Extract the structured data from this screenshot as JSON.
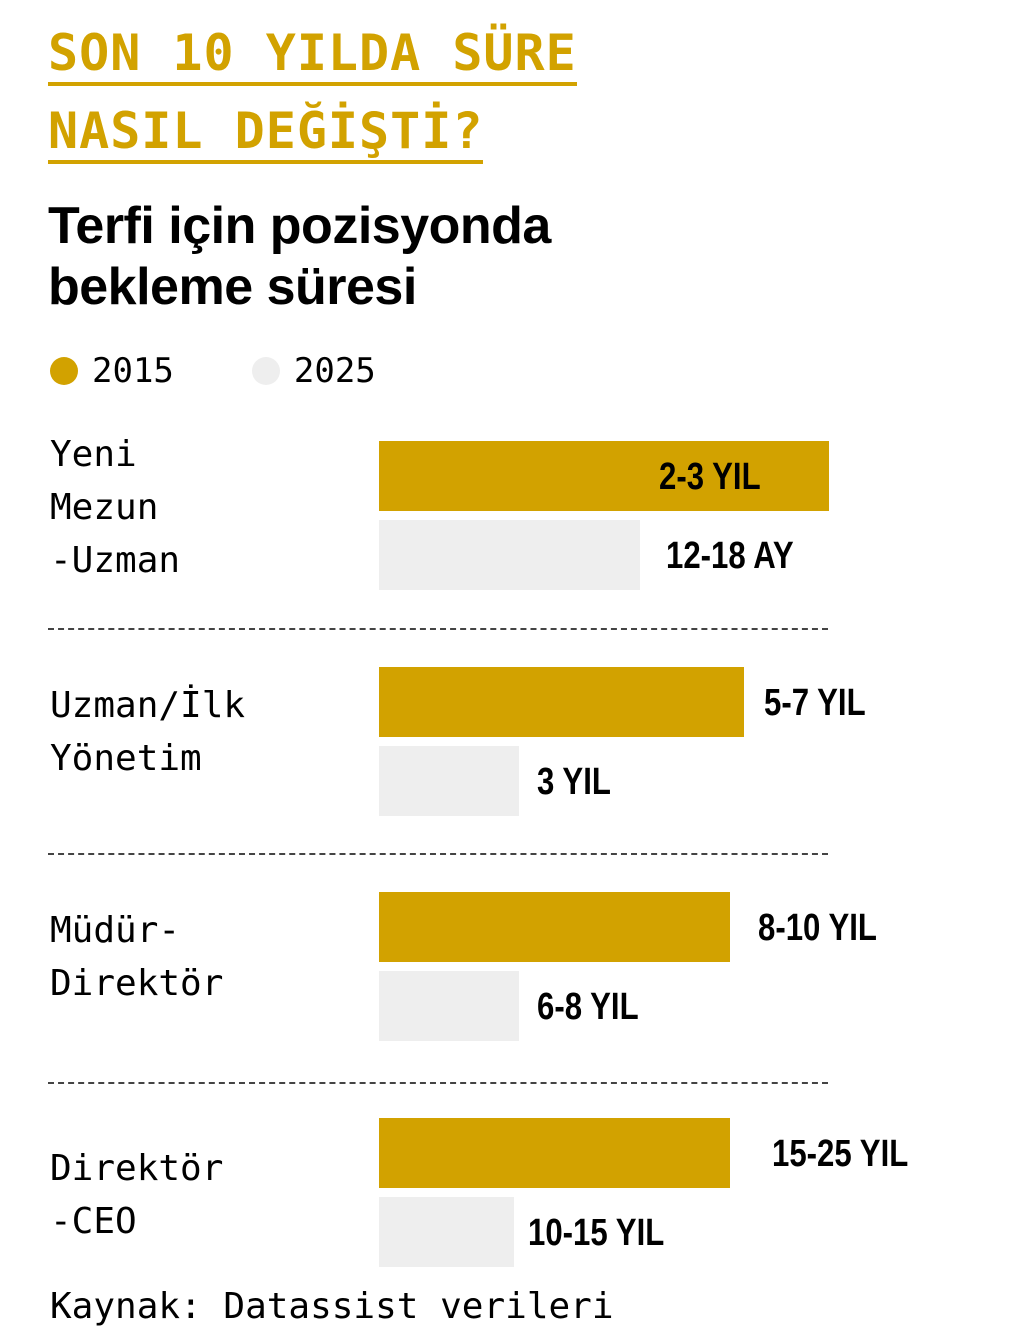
{
  "header": {
    "headline_line1": "SON 10 YILDA SÜRE",
    "headline_line2": "NASIL DEĞİŞTİ?",
    "subtitle": "Terfi için pozisyonda bekleme süresi"
  },
  "colors": {
    "accent": "#d2a200",
    "series_2015": "#d2a200",
    "series_2025": "#eeeeee",
    "text": "#000000"
  },
  "chart_data": {
    "type": "bar",
    "orientation": "horizontal",
    "categories": [
      "Yeni Mezun -Uzman",
      "Uzman/İlk Yönetim",
      "Müdür- Direktör",
      "Direktör -CEO"
    ],
    "category_labels": [
      "Yeni\nMezun\n-Uzman",
      "Uzman/İlk\nYönetim",
      "Müdür-\nDirektör",
      "Direktör\n-CEO"
    ],
    "series": [
      {
        "name": "2015",
        "labels": [
          "2-3 YIL",
          "5-7 YIL",
          "8-10 YIL",
          "15-25 YIL"
        ],
        "values": [
          1.0,
          0.81,
          0.78,
          0.78
        ]
      },
      {
        "name": "2025",
        "labels": [
          "12-18 AY",
          "3 YIL",
          "6-8 YIL",
          "10-15 YIL"
        ],
        "values": [
          0.58,
          0.31,
          0.31,
          0.3
        ]
      }
    ],
    "legend_position": "top-left",
    "grid": false
  },
  "footer": {
    "source": "Kaynak: Datassist verileri"
  }
}
